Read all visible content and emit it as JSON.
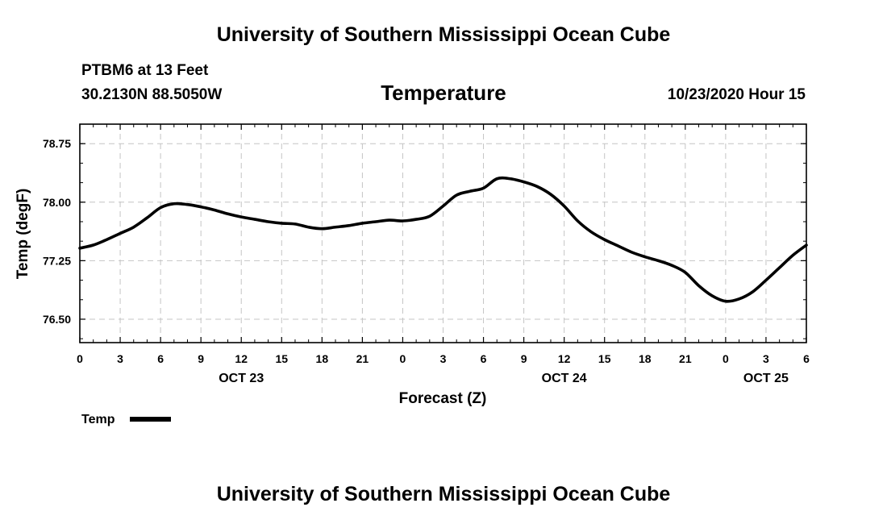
{
  "header": {
    "title": "University of Southern Mississippi Ocean Cube",
    "station": "PTBM6 at 13 Feet",
    "location": "30.2130N 88.5050W",
    "variable": "Temperature",
    "datetime": "10/23/2020 Hour 15"
  },
  "footer": {
    "title": "University of Southern Mississippi Ocean Cube"
  },
  "legend": {
    "label": "Temp",
    "placement": "bottom-left"
  },
  "chart_data": {
    "type": "line",
    "xlabel": "Forecast (Z)",
    "ylabel": "Temp (degF)",
    "xlim": [
      0,
      54
    ],
    "ylim": [
      76.2,
      79.0
    ],
    "grid": true,
    "yticks": [
      76.5,
      77.25,
      78.0,
      78.75
    ],
    "ytick_labels": [
      "76.50",
      "77.25",
      "78.00",
      "78.75"
    ],
    "xticks": [
      0,
      3,
      6,
      9,
      12,
      15,
      18,
      21,
      24,
      27,
      30,
      33,
      36,
      39,
      42,
      45,
      48,
      51,
      54
    ],
    "xtick_labels": [
      "0",
      "3",
      "6",
      "9",
      "12",
      "15",
      "18",
      "21",
      "0",
      "3",
      "6",
      "9",
      "12",
      "15",
      "18",
      "21",
      "0",
      "3",
      "6"
    ],
    "day_labels": [
      {
        "x": 12,
        "label": "OCT 23"
      },
      {
        "x": 36,
        "label": "OCT 24"
      },
      {
        "x": 51,
        "label": "OCT 25"
      }
    ],
    "series": [
      {
        "name": "Temp",
        "color": "#000000",
        "x": [
          0,
          1,
          2,
          3,
          4,
          5,
          6,
          7,
          8,
          9,
          10,
          11,
          12,
          13,
          14,
          15,
          16,
          17,
          18,
          19,
          20,
          21,
          22,
          23,
          24,
          25,
          26,
          27,
          28,
          29,
          30,
          31,
          32,
          33,
          34,
          35,
          36,
          37,
          38,
          39,
          40,
          41,
          42,
          43,
          44,
          45,
          46,
          47,
          48,
          49,
          50,
          51,
          52,
          53,
          54
        ],
        "y": [
          77.41,
          77.45,
          77.52,
          77.6,
          77.68,
          77.8,
          77.93,
          77.98,
          77.97,
          77.94,
          77.9,
          77.85,
          77.81,
          77.78,
          77.75,
          77.73,
          77.72,
          77.68,
          77.66,
          77.68,
          77.7,
          77.73,
          77.75,
          77.77,
          77.76,
          77.78,
          77.82,
          77.95,
          78.09,
          78.14,
          78.18,
          78.3,
          78.3,
          78.26,
          78.2,
          78.1,
          77.95,
          77.76,
          77.62,
          77.52,
          77.44,
          77.36,
          77.3,
          77.25,
          77.19,
          77.1,
          76.93,
          76.8,
          76.73,
          76.76,
          76.85,
          77.0,
          77.16,
          77.32,
          77.45
        ]
      }
    ]
  }
}
